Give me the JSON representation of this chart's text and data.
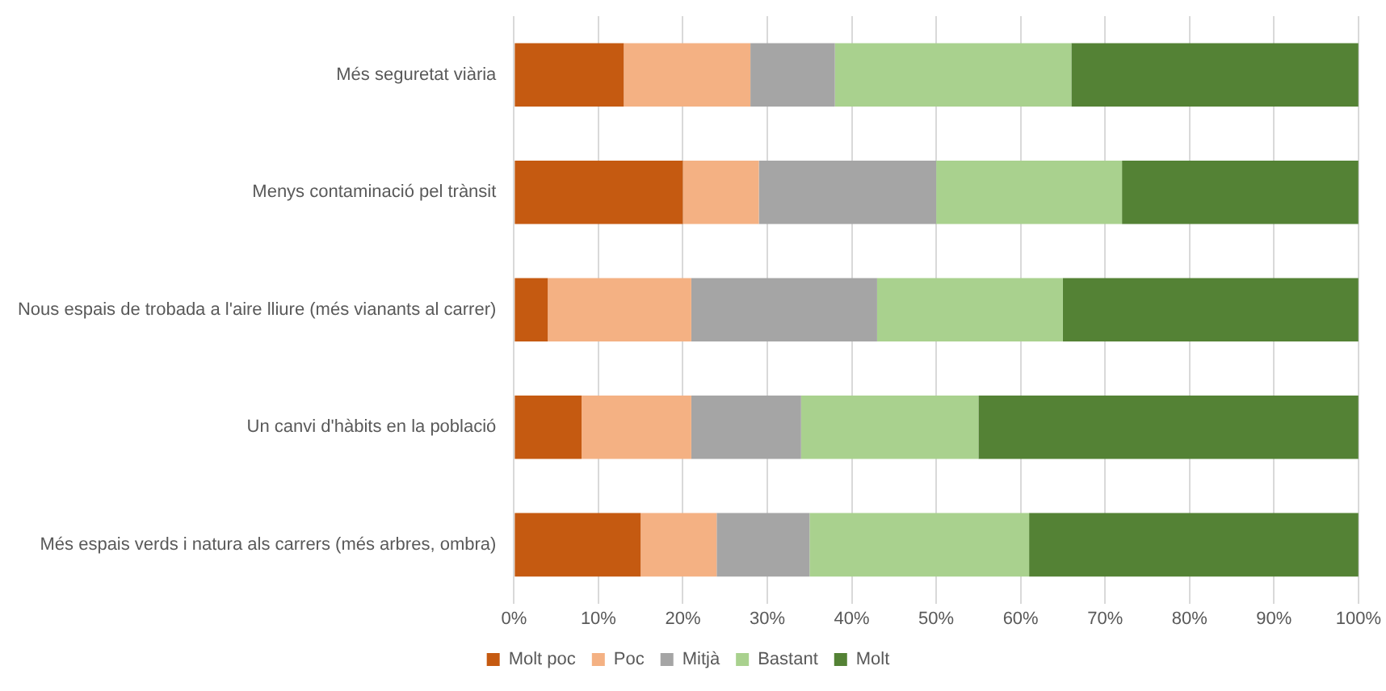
{
  "chart_data": {
    "type": "bar",
    "orientation": "horizontal",
    "stacked": true,
    "categories": [
      "Més seguretat viària",
      "Menys contaminació pel trànsit",
      "Nous espais de trobada a l'aire lliure (més vianants al carrer)",
      "Un canvi d'hàbits en la població",
      "Més espais verds i natura als carrers (més arbres, ombra)"
    ],
    "series": [
      {
        "name": "Molt poc",
        "color": "#c55a11",
        "values": [
          13,
          20,
          4,
          8,
          15
        ]
      },
      {
        "name": "Poc",
        "color": "#f4b183",
        "values": [
          15,
          9,
          17,
          13,
          9
        ]
      },
      {
        "name": "Mitjà",
        "color": "#a5a5a5",
        "values": [
          10,
          21,
          22,
          13,
          11
        ]
      },
      {
        "name": "Bastant",
        "color": "#a9d18e",
        "values": [
          28,
          22,
          22,
          21,
          26
        ]
      },
      {
        "name": "Molt",
        "color": "#548235",
        "values": [
          34,
          28,
          35,
          45,
          39
        ]
      }
    ],
    "xlim": [
      0,
      100
    ],
    "xticks": [
      {
        "value": 0,
        "label": "0%"
      },
      {
        "value": 10,
        "label": "10%"
      },
      {
        "value": 20,
        "label": "20%"
      },
      {
        "value": 30,
        "label": "30%"
      },
      {
        "value": 40,
        "label": "40%"
      },
      {
        "value": 50,
        "label": "50%"
      },
      {
        "value": 60,
        "label": "60%"
      },
      {
        "value": 70,
        "label": "70%"
      },
      {
        "value": 80,
        "label": "80%"
      },
      {
        "value": 90,
        "label": "90%"
      },
      {
        "value": 100,
        "label": "100%"
      }
    ],
    "grid": "x",
    "legend": "bottom"
  }
}
